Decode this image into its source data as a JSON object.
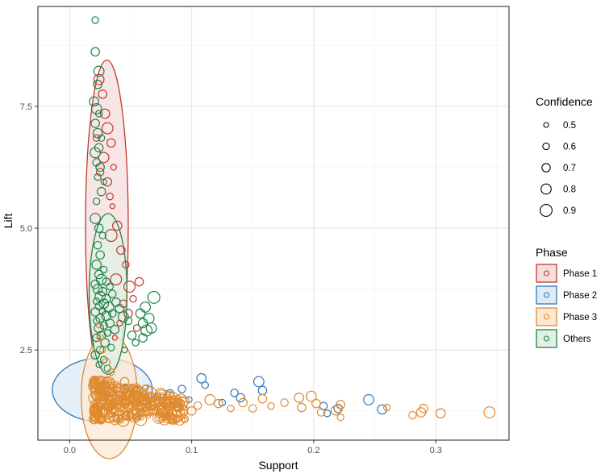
{
  "chart_data": {
    "type": "scatter",
    "xlabel": "Support",
    "ylabel": "Lift",
    "xlim": [
      -0.026,
      0.36
    ],
    "ylim": [
      0.65,
      9.55
    ],
    "x_ticks": [
      {
        "value": 0.0,
        "label": "0.0"
      },
      {
        "value": 0.1,
        "label": "0.1"
      },
      {
        "value": 0.2,
        "label": "0.2"
      },
      {
        "value": 0.3,
        "label": "0.3"
      }
    ],
    "y_ticks": [
      {
        "value": 2.5,
        "label": "2.5"
      },
      {
        "value": 5.0,
        "label": "5.0"
      },
      {
        "value": 7.5,
        "label": "7.5"
      }
    ],
    "grid": true,
    "size_legend": {
      "title": "Confidence",
      "entries": [
        {
          "value": 0.5,
          "label": "0.5"
        },
        {
          "value": 0.6,
          "label": "0.6"
        },
        {
          "value": 0.7,
          "label": "0.7"
        },
        {
          "value": 0.8,
          "label": "0.8"
        },
        {
          "value": 0.9,
          "label": "0.9"
        }
      ]
    },
    "color_legend": {
      "title": "Phase",
      "placement": "right"
    },
    "series": [
      {
        "name": "Phase 1",
        "color": "#c0392b",
        "fill": "#f5dede",
        "ellipse": {
          "cx": 0.0305,
          "cy": 5.05,
          "rx": 0.0175,
          "ry": 3.4
        },
        "points": [
          {
            "x": 0.024,
            "y": 8.05,
            "c": 0.8
          },
          {
            "x": 0.027,
            "y": 7.75,
            "c": 0.7
          },
          {
            "x": 0.029,
            "y": 7.35,
            "c": 0.75
          },
          {
            "x": 0.031,
            "y": 7.05,
            "c": 0.85
          },
          {
            "x": 0.022,
            "y": 6.85,
            "c": 0.6
          },
          {
            "x": 0.034,
            "y": 6.75,
            "c": 0.7
          },
          {
            "x": 0.028,
            "y": 6.45,
            "c": 0.8
          },
          {
            "x": 0.036,
            "y": 6.25,
            "c": 0.55
          },
          {
            "x": 0.025,
            "y": 6.15,
            "c": 0.65
          },
          {
            "x": 0.031,
            "y": 5.95,
            "c": 0.7
          },
          {
            "x": 0.033,
            "y": 5.65,
            "c": 0.6
          },
          {
            "x": 0.035,
            "y": 5.45,
            "c": 0.5
          },
          {
            "x": 0.039,
            "y": 5.05,
            "c": 0.75
          },
          {
            "x": 0.034,
            "y": 4.85,
            "c": 0.9
          },
          {
            "x": 0.042,
            "y": 4.55,
            "c": 0.7
          },
          {
            "x": 0.046,
            "y": 4.25,
            "c": 0.6
          },
          {
            "x": 0.038,
            "y": 3.95,
            "c": 0.85
          },
          {
            "x": 0.057,
            "y": 3.9,
            "c": 0.7
          },
          {
            "x": 0.049,
            "y": 3.8,
            "c": 0.85
          },
          {
            "x": 0.052,
            "y": 3.55,
            "c": 0.6
          },
          {
            "x": 0.044,
            "y": 3.45,
            "c": 0.65
          },
          {
            "x": 0.048,
            "y": 3.25,
            "c": 0.7
          },
          {
            "x": 0.041,
            "y": 3.05,
            "c": 0.55
          },
          {
            "x": 0.055,
            "y": 2.95,
            "c": 0.6
          },
          {
            "x": 0.037,
            "y": 2.75,
            "c": 0.5
          }
        ]
      },
      {
        "name": "Phase 2",
        "color": "#2f7ab9",
        "fill": "#deebf5",
        "ellipse": {
          "cx": 0.0268,
          "cy": 1.68,
          "rx": 0.041,
          "ry": 0.66
        },
        "points": [
          {
            "x": 0.245,
            "y": 1.48,
            "c": 0.8
          },
          {
            "x": 0.256,
            "y": 1.28,
            "c": 0.75
          },
          {
            "x": 0.22,
            "y": 1.3,
            "c": 0.7
          },
          {
            "x": 0.208,
            "y": 1.35,
            "c": 0.65
          },
          {
            "x": 0.211,
            "y": 1.2,
            "c": 0.6
          },
          {
            "x": 0.155,
            "y": 1.85,
            "c": 0.8
          },
          {
            "x": 0.158,
            "y": 1.67,
            "c": 0.7
          },
          {
            "x": 0.135,
            "y": 1.62,
            "c": 0.65
          },
          {
            "x": 0.14,
            "y": 1.52,
            "c": 0.7
          },
          {
            "x": 0.108,
            "y": 1.92,
            "c": 0.75
          },
          {
            "x": 0.111,
            "y": 1.78,
            "c": 0.6
          },
          {
            "x": 0.092,
            "y": 1.7,
            "c": 0.65
          },
          {
            "x": 0.082,
            "y": 1.6,
            "c": 0.7
          },
          {
            "x": 0.072,
            "y": 1.55,
            "c": 0.6
          },
          {
            "x": 0.062,
            "y": 1.72,
            "c": 0.55
          },
          {
            "x": 0.055,
            "y": 1.66,
            "c": 0.65
          },
          {
            "x": 0.045,
            "y": 1.7,
            "c": 0.7
          },
          {
            "x": 0.125,
            "y": 1.42,
            "c": 0.6
          },
          {
            "x": 0.098,
            "y": 1.48,
            "c": 0.55
          },
          {
            "x": 0.03,
            "y": 1.5,
            "c": 0.5
          }
        ]
      },
      {
        "name": "Phase 3",
        "color": "#e08a2e",
        "fill": "#fbe9d5",
        "ellipse": {
          "cx": 0.0325,
          "cy": 1.55,
          "rx": 0.023,
          "ry": 1.28
        },
        "points": [
          {
            "x": 0.344,
            "y": 1.22,
            "c": 0.85
          },
          {
            "x": 0.304,
            "y": 1.2,
            "c": 0.75
          },
          {
            "x": 0.29,
            "y": 1.3,
            "c": 0.7
          },
          {
            "x": 0.288,
            "y": 1.22,
            "c": 0.75
          },
          {
            "x": 0.281,
            "y": 1.16,
            "c": 0.65
          },
          {
            "x": 0.26,
            "y": 1.32,
            "c": 0.6
          },
          {
            "x": 0.222,
            "y": 1.38,
            "c": 0.7
          },
          {
            "x": 0.218,
            "y": 1.26,
            "c": 0.75
          },
          {
            "x": 0.222,
            "y": 1.12,
            "c": 0.6
          },
          {
            "x": 0.206,
            "y": 1.22,
            "c": 0.65
          },
          {
            "x": 0.198,
            "y": 1.55,
            "c": 0.8
          },
          {
            "x": 0.202,
            "y": 1.4,
            "c": 0.7
          },
          {
            "x": 0.188,
            "y": 1.52,
            "c": 0.75
          },
          {
            "x": 0.19,
            "y": 1.32,
            "c": 0.7
          },
          {
            "x": 0.176,
            "y": 1.42,
            "c": 0.65
          },
          {
            "x": 0.158,
            "y": 1.5,
            "c": 0.7
          },
          {
            "x": 0.165,
            "y": 1.35,
            "c": 0.6
          },
          {
            "x": 0.15,
            "y": 1.3,
            "c": 0.65
          },
          {
            "x": 0.142,
            "y": 1.42,
            "c": 0.7
          },
          {
            "x": 0.132,
            "y": 1.3,
            "c": 0.6
          },
          {
            "x": 0.122,
            "y": 1.4,
            "c": 0.7
          },
          {
            "x": 0.115,
            "y": 1.48,
            "c": 0.8
          },
          {
            "x": 0.105,
            "y": 1.36,
            "c": 0.65
          },
          {
            "x": 0.1,
            "y": 1.25,
            "c": 0.7
          },
          {
            "x": 0.094,
            "y": 1.45,
            "c": 0.75
          },
          {
            "x": 0.088,
            "y": 1.33,
            "c": 0.6
          },
          {
            "x": 0.082,
            "y": 1.2,
            "c": 0.65
          },
          {
            "x": 0.076,
            "y": 1.5,
            "c": 0.7
          },
          {
            "x": 0.07,
            "y": 1.38,
            "c": 0.8
          },
          {
            "x": 0.065,
            "y": 1.25,
            "c": 0.6
          },
          {
            "x": 0.06,
            "y": 1.62,
            "c": 0.7
          },
          {
            "x": 0.055,
            "y": 1.45,
            "c": 0.75
          },
          {
            "x": 0.05,
            "y": 1.3,
            "c": 0.65
          },
          {
            "x": 0.046,
            "y": 1.15,
            "c": 0.7
          },
          {
            "x": 0.042,
            "y": 1.55,
            "c": 0.8
          },
          {
            "x": 0.038,
            "y": 1.4,
            "c": 0.85
          },
          {
            "x": 0.035,
            "y": 1.25,
            "c": 0.9
          },
          {
            "x": 0.032,
            "y": 1.1,
            "c": 0.75
          },
          {
            "x": 0.029,
            "y": 1.65,
            "c": 0.7
          },
          {
            "x": 0.026,
            "y": 1.5,
            "c": 0.8
          },
          {
            "x": 0.024,
            "y": 1.35,
            "c": 0.65
          },
          {
            "x": 0.022,
            "y": 1.2,
            "c": 0.7
          },
          {
            "x": 0.02,
            "y": 1.05,
            "c": 0.6
          },
          {
            "x": 0.031,
            "y": 1.85,
            "c": 0.7
          },
          {
            "x": 0.034,
            "y": 2.05,
            "c": 0.6
          },
          {
            "x": 0.03,
            "y": 2.25,
            "c": 0.65
          },
          {
            "x": 0.027,
            "y": 2.5,
            "c": 0.55
          },
          {
            "x": 0.025,
            "y": 2.75,
            "c": 0.6
          },
          {
            "x": 0.024,
            "y": 3.0,
            "c": 0.5
          },
          {
            "x": 0.045,
            "y": 1.85,
            "c": 0.7
          }
        ]
      },
      {
        "name": "Others",
        "color": "#1e8449",
        "fill": "#e1f0e4",
        "ellipse": {
          "cx": 0.0315,
          "cy": 3.65,
          "rx": 0.0155,
          "ry": 1.65
        },
        "points": [
          {
            "x": 0.021,
            "y": 9.27,
            "c": 0.6
          },
          {
            "x": 0.021,
            "y": 8.62,
            "c": 0.7
          },
          {
            "x": 0.024,
            "y": 8.22,
            "c": 0.8
          },
          {
            "x": 0.023,
            "y": 7.95,
            "c": 0.7
          },
          {
            "x": 0.02,
            "y": 7.6,
            "c": 0.75
          },
          {
            "x": 0.022,
            "y": 7.45,
            "c": 0.8
          },
          {
            "x": 0.024,
            "y": 7.35,
            "c": 0.6
          },
          {
            "x": 0.021,
            "y": 7.15,
            "c": 0.7
          },
          {
            "x": 0.023,
            "y": 6.95,
            "c": 0.75
          },
          {
            "x": 0.026,
            "y": 6.85,
            "c": 0.6
          },
          {
            "x": 0.024,
            "y": 6.65,
            "c": 0.7
          },
          {
            "x": 0.021,
            "y": 6.55,
            "c": 0.8
          },
          {
            "x": 0.022,
            "y": 6.35,
            "c": 0.65
          },
          {
            "x": 0.025,
            "y": 6.25,
            "c": 0.7
          },
          {
            "x": 0.023,
            "y": 6.05,
            "c": 0.6
          },
          {
            "x": 0.028,
            "y": 5.95,
            "c": 0.55
          },
          {
            "x": 0.026,
            "y": 5.75,
            "c": 0.7
          },
          {
            "x": 0.022,
            "y": 5.55,
            "c": 0.6
          },
          {
            "x": 0.021,
            "y": 5.2,
            "c": 0.8
          },
          {
            "x": 0.024,
            "y": 5.0,
            "c": 0.7
          },
          {
            "x": 0.027,
            "y": 4.85,
            "c": 0.6
          },
          {
            "x": 0.023,
            "y": 4.65,
            "c": 0.65
          },
          {
            "x": 0.025,
            "y": 4.45,
            "c": 0.7
          },
          {
            "x": 0.022,
            "y": 4.25,
            "c": 0.75
          },
          {
            "x": 0.028,
            "y": 4.15,
            "c": 0.6
          },
          {
            "x": 0.024,
            "y": 4.05,
            "c": 0.7
          },
          {
            "x": 0.026,
            "y": 3.95,
            "c": 0.8
          },
          {
            "x": 0.03,
            "y": 3.9,
            "c": 0.65
          },
          {
            "x": 0.021,
            "y": 3.85,
            "c": 0.7
          },
          {
            "x": 0.033,
            "y": 3.8,
            "c": 0.6
          },
          {
            "x": 0.023,
            "y": 3.75,
            "c": 0.75
          },
          {
            "x": 0.027,
            "y": 3.7,
            "c": 0.7
          },
          {
            "x": 0.035,
            "y": 3.65,
            "c": 0.65
          },
          {
            "x": 0.025,
            "y": 3.6,
            "c": 0.8
          },
          {
            "x": 0.03,
            "y": 3.55,
            "c": 0.7
          },
          {
            "x": 0.022,
            "y": 3.5,
            "c": 0.6
          },
          {
            "x": 0.038,
            "y": 3.48,
            "c": 0.7
          },
          {
            "x": 0.028,
            "y": 3.45,
            "c": 0.75
          },
          {
            "x": 0.024,
            "y": 3.4,
            "c": 0.65
          },
          {
            "x": 0.032,
            "y": 3.38,
            "c": 0.8
          },
          {
            "x": 0.041,
            "y": 3.35,
            "c": 0.7
          },
          {
            "x": 0.027,
            "y": 3.3,
            "c": 0.6
          },
          {
            "x": 0.021,
            "y": 3.28,
            "c": 0.7
          },
          {
            "x": 0.035,
            "y": 3.25,
            "c": 0.65
          },
          {
            "x": 0.03,
            "y": 3.2,
            "c": 0.75
          },
          {
            "x": 0.025,
            "y": 3.15,
            "c": 0.7
          },
          {
            "x": 0.044,
            "y": 3.18,
            "c": 0.8
          },
          {
            "x": 0.022,
            "y": 3.1,
            "c": 0.6
          },
          {
            "x": 0.033,
            "y": 3.05,
            "c": 0.7
          },
          {
            "x": 0.028,
            "y": 3.0,
            "c": 0.65
          },
          {
            "x": 0.024,
            "y": 2.95,
            "c": 0.75
          },
          {
            "x": 0.037,
            "y": 2.92,
            "c": 0.7
          },
          {
            "x": 0.031,
            "y": 2.85,
            "c": 0.6
          },
          {
            "x": 0.026,
            "y": 2.8,
            "c": 0.7
          },
          {
            "x": 0.022,
            "y": 2.75,
            "c": 0.65
          },
          {
            "x": 0.029,
            "y": 2.65,
            "c": 0.7
          },
          {
            "x": 0.034,
            "y": 2.55,
            "c": 0.6
          },
          {
            "x": 0.025,
            "y": 2.5,
            "c": 0.65
          },
          {
            "x": 0.021,
            "y": 2.4,
            "c": 0.7
          },
          {
            "x": 0.028,
            "y": 2.3,
            "c": 0.6
          },
          {
            "x": 0.024,
            "y": 2.2,
            "c": 0.55
          },
          {
            "x": 0.031,
            "y": 2.12,
            "c": 0.6
          },
          {
            "x": 0.069,
            "y": 3.58,
            "c": 0.9
          },
          {
            "x": 0.062,
            "y": 3.38,
            "c": 0.8
          },
          {
            "x": 0.058,
            "y": 3.25,
            "c": 0.75
          },
          {
            "x": 0.065,
            "y": 3.15,
            "c": 0.8
          },
          {
            "x": 0.06,
            "y": 3.05,
            "c": 0.75
          },
          {
            "x": 0.063,
            "y": 2.9,
            "c": 0.85
          },
          {
            "x": 0.067,
            "y": 2.95,
            "c": 0.8
          },
          {
            "x": 0.06,
            "y": 2.75,
            "c": 0.7
          },
          {
            "x": 0.051,
            "y": 2.8,
            "c": 0.7
          },
          {
            "x": 0.048,
            "y": 3.1,
            "c": 0.65
          },
          {
            "x": 0.054,
            "y": 2.65,
            "c": 0.6
          },
          {
            "x": 0.045,
            "y": 2.5,
            "c": 0.55
          }
        ]
      }
    ]
  }
}
